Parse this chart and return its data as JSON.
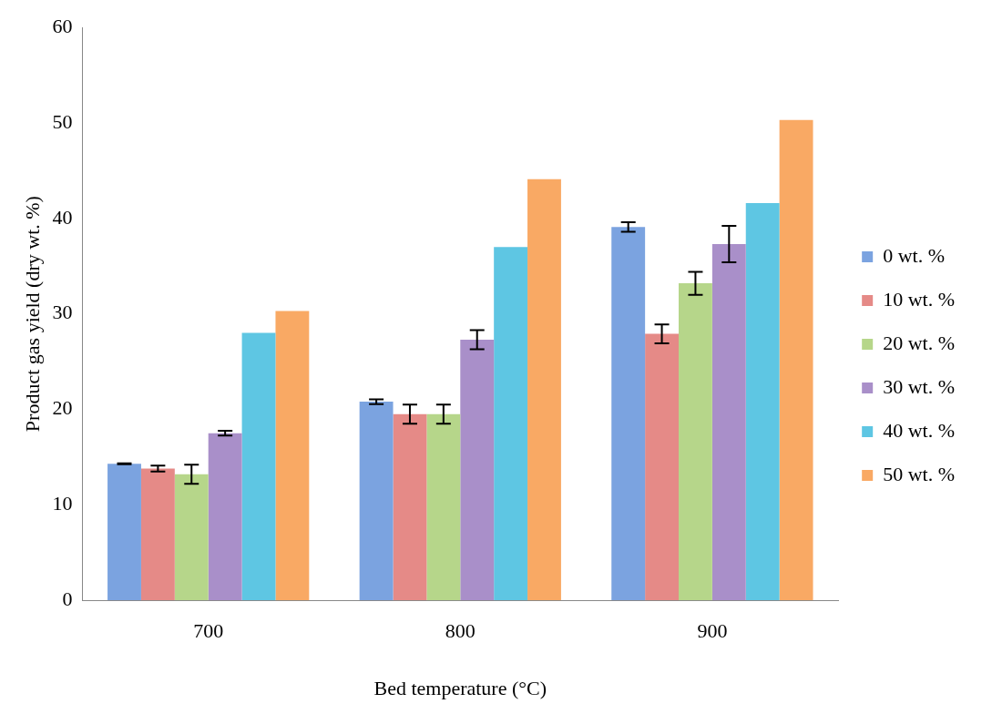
{
  "chart_data": {
    "type": "bar",
    "xlabel": "Bed temperature (°C)",
    "ylabel": "Product gas yield (dry wt. %)",
    "categories": [
      "700",
      "800",
      "900"
    ],
    "ylim": [
      0,
      60
    ],
    "yticks": [
      0,
      10,
      20,
      30,
      40,
      50,
      60
    ],
    "grid": false,
    "legend": "right",
    "series": [
      {
        "name": "0 wt. %",
        "color": "#7ba3e0",
        "values": [
          14.3,
          20.8,
          39.1
        ],
        "errors": [
          0.05,
          0.25,
          0.5
        ]
      },
      {
        "name": "10 wt. %",
        "color": "#e58a87",
        "values": [
          13.8,
          19.5,
          27.9
        ],
        "errors": [
          0.3,
          1,
          1
        ]
      },
      {
        "name": "20 wt. %",
        "color": "#b6d68a",
        "values": [
          13.2,
          19.5,
          33.2
        ],
        "errors": [
          1,
          1,
          1.2
        ]
      },
      {
        "name": "30 wt. %",
        "color": "#a98fc9",
        "values": [
          17.5,
          27.3,
          37.3
        ],
        "errors": [
          0.25,
          1,
          1.9
        ]
      },
      {
        "name": "40 wt. %",
        "color": "#5ec6e3",
        "values": [
          28,
          37,
          41.6
        ]
      },
      {
        "name": "50 wt. %",
        "color": "#f9a964",
        "values": [
          30.3,
          44.1,
          50.3
        ]
      }
    ]
  }
}
